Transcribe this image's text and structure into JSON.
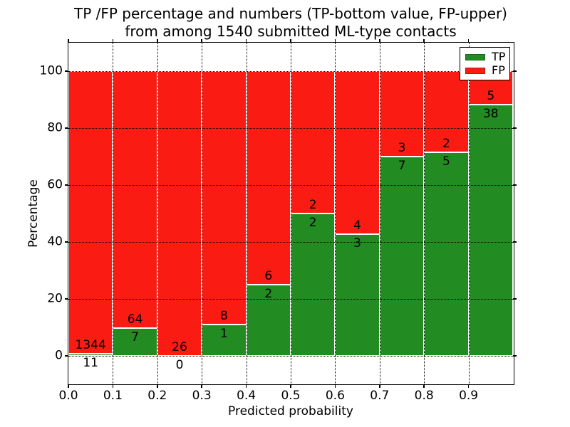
{
  "figure": {
    "title_line1": "TP /FP percentage and numbers (TP-bottom value, FP-upper)",
    "title_line2": "from among 1540 submitted ML-type contacts"
  },
  "chart_data": {
    "type": "bar",
    "stacked": true,
    "normalized_to_percent": true,
    "title": "TP /FP percentage and numbers (TP-bottom value, FP-upper) from among 1540 submitted ML-type contacts",
    "xlabel": "Predicted probability",
    "ylabel": "Percentage",
    "xlim": [
      0.0,
      1.0
    ],
    "ylim": [
      -10,
      110
    ],
    "bin_width": 0.1,
    "bin_starts": [
      0.0,
      0.1,
      0.2,
      0.3,
      0.4,
      0.5,
      0.6,
      0.7,
      0.8,
      0.9
    ],
    "xtick_values": [
      0.0,
      0.1,
      0.2,
      0.3,
      0.4,
      0.5,
      0.6,
      0.7,
      0.8,
      0.9
    ],
    "xtick_labels": [
      "0.0",
      "0.1",
      "0.2",
      "0.3",
      "0.4",
      "0.5",
      "0.6",
      "0.7",
      "0.8",
      "0.9"
    ],
    "ytick_values": [
      0,
      20,
      40,
      60,
      80,
      100
    ],
    "ytick_labels": [
      "0",
      "20",
      "40",
      "60",
      "80",
      "100"
    ],
    "grid": "dotted",
    "legend_position": "upper right",
    "series": [
      {
        "name": "TP",
        "color": "#228b22",
        "counts": [
          11,
          7,
          0,
          1,
          2,
          2,
          3,
          7,
          5,
          38
        ]
      },
      {
        "name": "FP",
        "color": "#fa1b13",
        "counts": [
          1344,
          64,
          26,
          8,
          6,
          2,
          4,
          3,
          2,
          5
        ]
      }
    ],
    "tp_percent_of_bin": [
      0.81,
      9.86,
      0.0,
      11.11,
      25.0,
      50.0,
      42.86,
      70.0,
      71.43,
      88.37
    ],
    "total_contacts": 1540
  }
}
